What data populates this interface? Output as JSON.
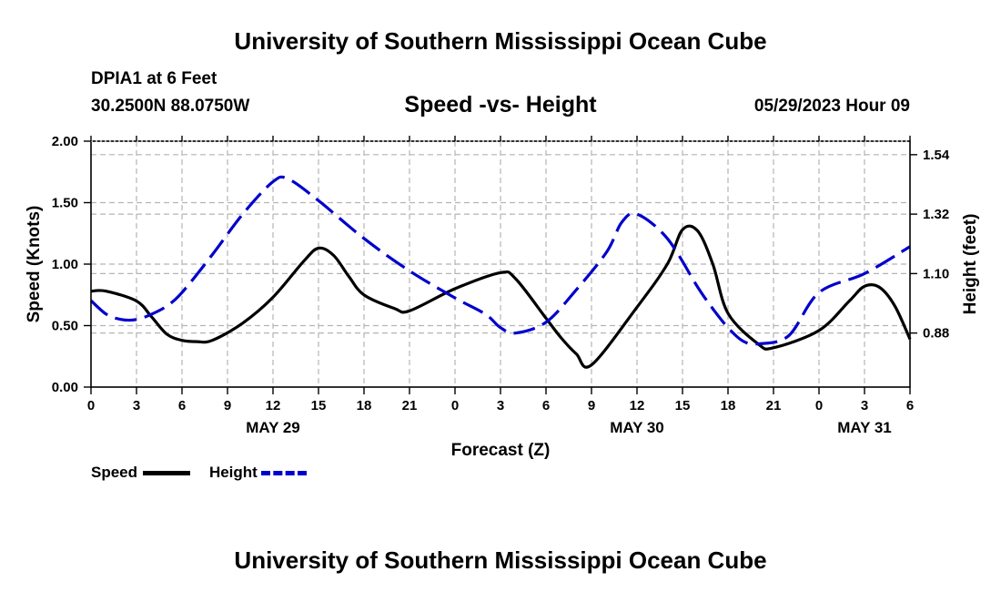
{
  "header": {
    "title": "University of Southern Mississippi Ocean Cube",
    "station": "DPIA1 at 6 Feet",
    "coords": "30.2500N  88.0750W",
    "datetime": "05/29/2023 Hour 09",
    "footer_title": "University of Southern Mississippi Ocean Cube"
  },
  "chart_data": {
    "type": "line",
    "title": "Speed -vs- Height",
    "xlabel": "Forecast (Z)",
    "ylabel": "Speed (Knots)",
    "y2label": "Height (feet)",
    "xlim": [
      0,
      54
    ],
    "ylim": [
      0,
      2
    ],
    "y2lim": [
      0.68,
      1.59
    ],
    "x_ticks": [
      0,
      3,
      6,
      9,
      12,
      15,
      18,
      21,
      24,
      27,
      30,
      33,
      36,
      39,
      42,
      45,
      48,
      51,
      54
    ],
    "x_tick_labels": [
      "0",
      "3",
      "6",
      "9",
      "12",
      "15",
      "18",
      "21",
      "0",
      "3",
      "6",
      "9",
      "12",
      "15",
      "18",
      "21",
      "0",
      "3",
      "6"
    ],
    "y_ticks": [
      0,
      0.5,
      1,
      1.5,
      2
    ],
    "y_tick_labels": [
      "0.00",
      "0.50",
      "1.00",
      "1.50",
      "2.00"
    ],
    "y2_ticks": [
      0.88,
      1.1,
      1.32,
      1.54
    ],
    "y2_tick_labels": [
      "0.88",
      "1.10",
      "1.32",
      "1.54"
    ],
    "date_labels": [
      {
        "x": 12,
        "label": "MAY 29"
      },
      {
        "x": 36,
        "label": "MAY 30"
      },
      {
        "x": 51,
        "label": "MAY 31"
      }
    ],
    "series": [
      {
        "name": "Speed",
        "axis": "left",
        "color": "#000000",
        "dash": "solid",
        "x": [
          0,
          1,
          3,
          4,
          5,
          6,
          7,
          8,
          10,
          12,
          14,
          15,
          16,
          17,
          18,
          20,
          21,
          24,
          27,
          28,
          30,
          31,
          32,
          33,
          36,
          38,
          39,
          40,
          41,
          42,
          44,
          45,
          48,
          50,
          51,
          52,
          53,
          54
        ],
        "values": [
          0.78,
          0.78,
          0.7,
          0.57,
          0.43,
          0.38,
          0.37,
          0.38,
          0.52,
          0.73,
          1.02,
          1.13,
          1.07,
          0.9,
          0.75,
          0.64,
          0.62,
          0.8,
          0.93,
          0.88,
          0.56,
          0.4,
          0.27,
          0.18,
          0.65,
          1.0,
          1.28,
          1.27,
          1.0,
          0.6,
          0.35,
          0.32,
          0.46,
          0.7,
          0.82,
          0.81,
          0.66,
          0.39
        ]
      },
      {
        "name": "Height",
        "axis": "right",
        "color": "#0000cc",
        "dash": "dashed",
        "x": [
          0,
          1,
          2,
          3,
          4,
          5,
          6,
          8,
          10,
          12,
          13,
          15,
          18,
          21,
          24,
          26,
          27,
          28,
          30,
          32,
          34,
          35,
          36,
          38,
          40,
          41,
          42,
          43,
          44,
          46,
          48,
          51,
          54
        ],
        "values": [
          1.0,
          0.95,
          0.93,
          0.93,
          0.95,
          0.98,
          1.03,
          1.17,
          1.32,
          1.44,
          1.45,
          1.37,
          1.23,
          1.11,
          1.01,
          0.95,
          0.9,
          0.88,
          0.92,
          1.04,
          1.18,
          1.29,
          1.32,
          1.23,
          1.05,
          0.97,
          0.9,
          0.85,
          0.84,
          0.87,
          1.03,
          1.1,
          1.2
        ]
      }
    ],
    "legend": [
      {
        "label": "Speed",
        "color": "#000000",
        "dash": "solid"
      },
      {
        "label": "Height",
        "color": "#0000cc",
        "dash": "dashed"
      }
    ]
  }
}
